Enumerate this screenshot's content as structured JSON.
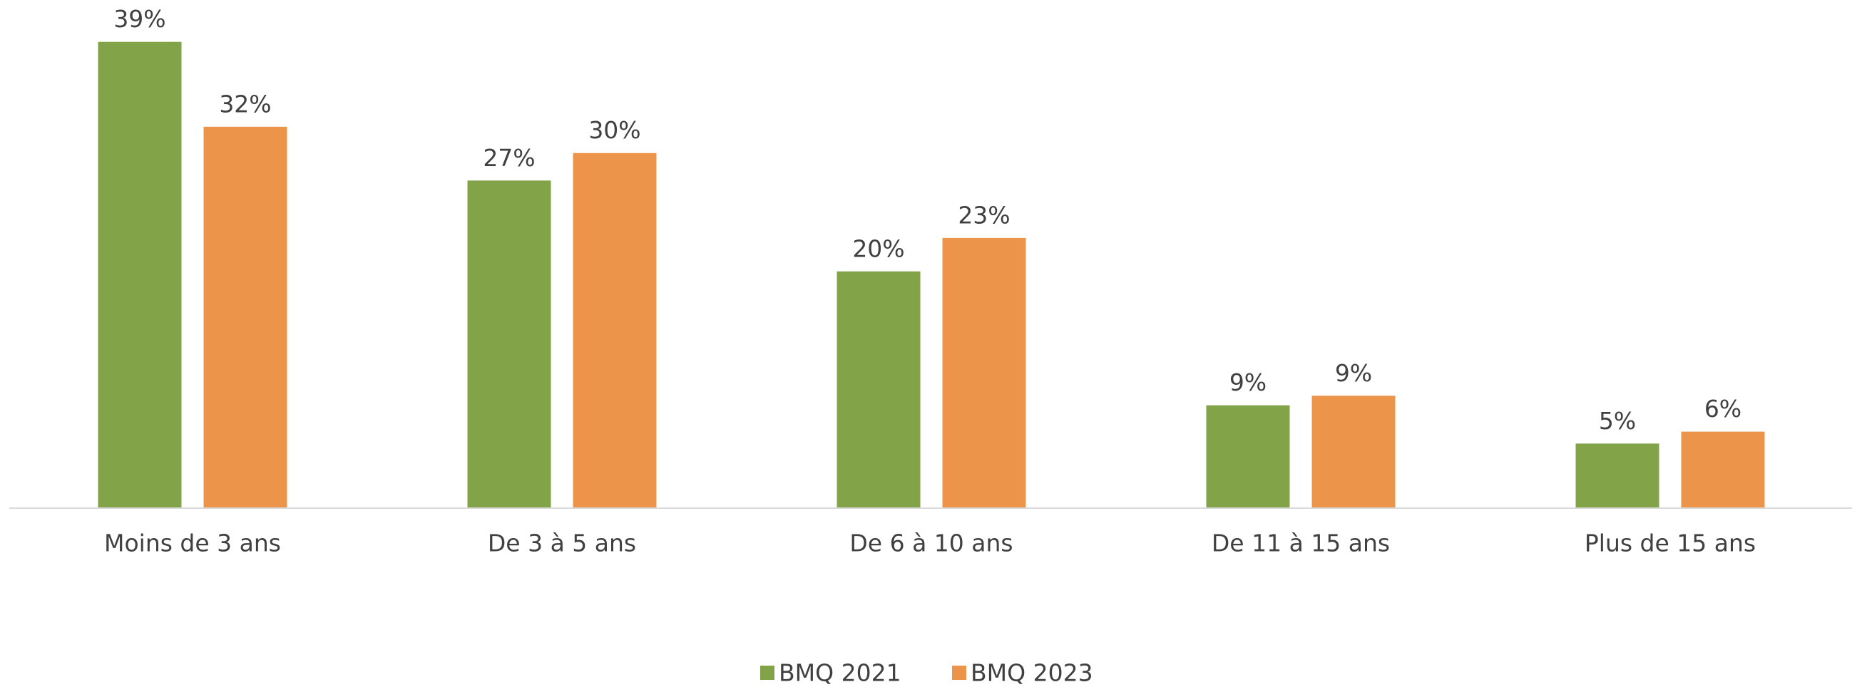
{
  "chart_data": {
    "type": "bar",
    "categories": [
      "Moins de 3 ans",
      "De 3 à 5 ans",
      "De 6 à 10 ans",
      "De 11 à 15 ans",
      "Plus de 15 ans"
    ],
    "series": [
      {
        "name": "BMQ 2021",
        "color": "#82a347",
        "values": [
          39,
          27.4,
          19.8,
          8.6,
          5.4
        ],
        "value_labels": [
          "39%",
          "27%",
          "20%",
          "9%",
          "5%"
        ]
      },
      {
        "name": "BMQ 2023",
        "color": "#ed944b",
        "values": [
          31.9,
          29.7,
          22.6,
          9.4,
          6.4
        ],
        "value_labels": [
          "32%",
          "30%",
          "23%",
          "9%",
          "6%"
        ]
      }
    ],
    "ylim": [
      0,
      42.5
    ],
    "legend": "bottom"
  }
}
